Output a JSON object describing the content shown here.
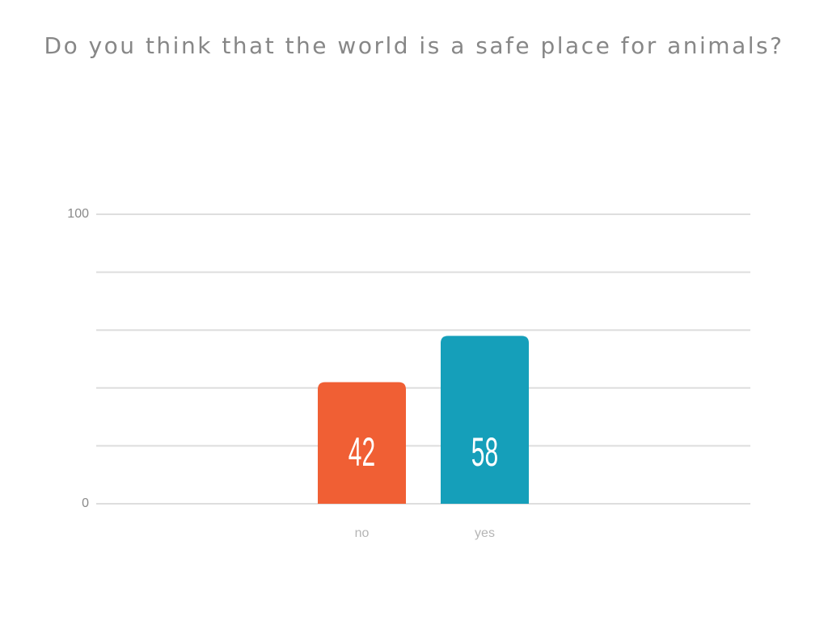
{
  "chart_data": {
    "type": "bar",
    "title": "Do you think that the world is a safe place for animals?",
    "categories": [
      "no",
      "yes"
    ],
    "values": [
      42,
      58
    ],
    "colors": [
      "#f05f34",
      "#159fba"
    ],
    "ylim": [
      0,
      100
    ],
    "yticks": [
      0,
      100
    ],
    "ygrid": [
      0,
      20,
      40,
      60,
      80,
      100
    ]
  }
}
